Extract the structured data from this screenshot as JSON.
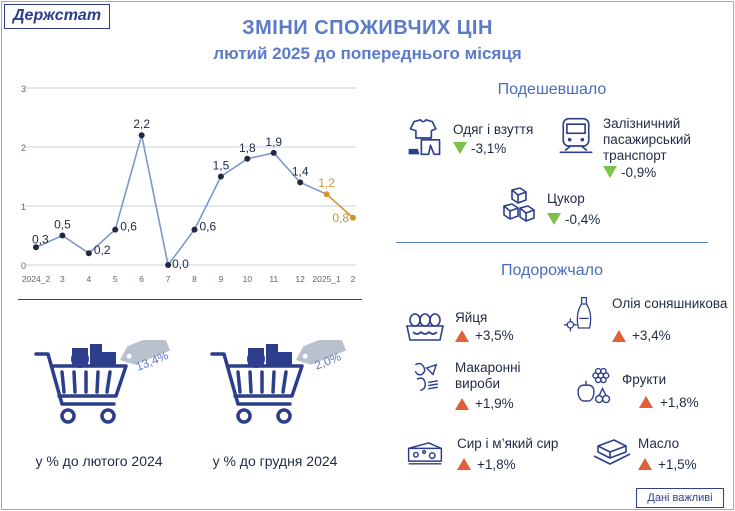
{
  "brand": "Держстат",
  "title": "ЗМІНИ СПОЖИВЧИХ ЦІН",
  "subtitle": "лютий 2025 до попереднього місяця",
  "chart_data": {
    "type": "line",
    "categories": [
      "2024_2",
      "3",
      "4",
      "5",
      "6",
      "7",
      "8",
      "9",
      "10",
      "11",
      "12",
      "2025_1",
      "2"
    ],
    "values": [
      0.3,
      0.5,
      0.2,
      0.6,
      2.2,
      0.0,
      0.6,
      1.5,
      1.8,
      1.9,
      1.4,
      1.2,
      0.8
    ],
    "data_labels": [
      "0,3",
      "0,5",
      "0,2",
      "0,6",
      "2,2",
      "0,0",
      "0,6",
      "1,5",
      "1,8",
      "1,9",
      "1,4",
      "1,2",
      "0,8"
    ],
    "yticks": [
      "0",
      "1",
      "2",
      "3"
    ],
    "ylim": [
      0,
      3
    ],
    "grid": true,
    "colors": {
      "line": "#7d96c8",
      "point": "#1f2a44",
      "highlight": "#d4922a"
    }
  },
  "stats": [
    {
      "value": "13,4%",
      "caption": "у % до лютого 2024"
    },
    {
      "value": "2,0%",
      "caption": "у % до грудня 2024"
    }
  ],
  "cheaper": {
    "heading": "Подешевшало",
    "items": [
      {
        "label": "Одяг і взуття",
        "value": "-3,1%",
        "icon": "clothes-icon"
      },
      {
        "label": "Залізничний пасажирський транспорт",
        "value": "-0,9%",
        "icon": "train-icon"
      },
      {
        "label": "Цукор",
        "value": "-0,4%",
        "icon": "sugar-icon"
      }
    ]
  },
  "pricier": {
    "heading": "Подорожчало",
    "items": [
      {
        "label": "Яйця",
        "value": "+3,5%",
        "icon": "eggs-icon"
      },
      {
        "label": "Олія соняшникова",
        "value": "+3,4%",
        "icon": "oil-icon"
      },
      {
        "label": "Макаронні вироби",
        "value": "+1,9%",
        "icon": "pasta-icon"
      },
      {
        "label": "Фрукти",
        "value": "+1,8%",
        "icon": "fruit-icon"
      },
      {
        "label": "Сир і м’який сир",
        "value": "+1,8%",
        "icon": "cheese-icon"
      },
      {
        "label": "Масло",
        "value": "+1,5%",
        "icon": "butter-icon"
      }
    ]
  },
  "footer": "Дані важливі"
}
